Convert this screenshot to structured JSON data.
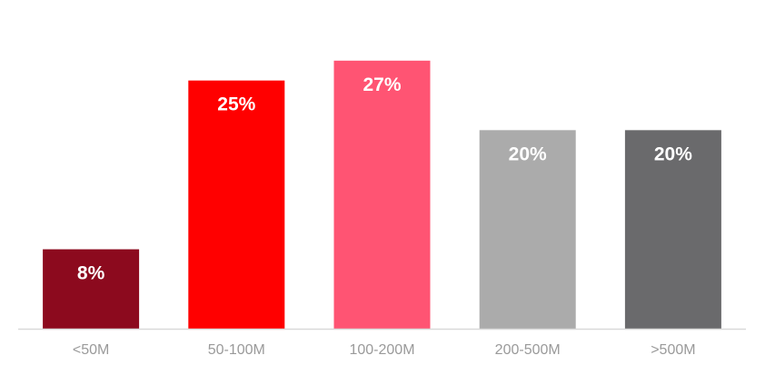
{
  "chart_data": {
    "type": "bar",
    "title": "",
    "xlabel": "",
    "ylabel": "",
    "categories": [
      "<50M",
      "50-100M",
      "100-200M",
      "200-500M",
      ">500M"
    ],
    "values": [
      8,
      25,
      27,
      20,
      20
    ],
    "data_labels": [
      "8%",
      "25%",
      "27%",
      "20%",
      "20%"
    ],
    "unit": "%",
    "ylim": [
      0,
      30
    ],
    "colors": [
      "#8c0a1e",
      "#ff0000",
      "#ff5473",
      "#ababab",
      "#6a6a6c"
    ],
    "grid": false,
    "legend": "none",
    "axis_color": "#d9d9d9"
  }
}
